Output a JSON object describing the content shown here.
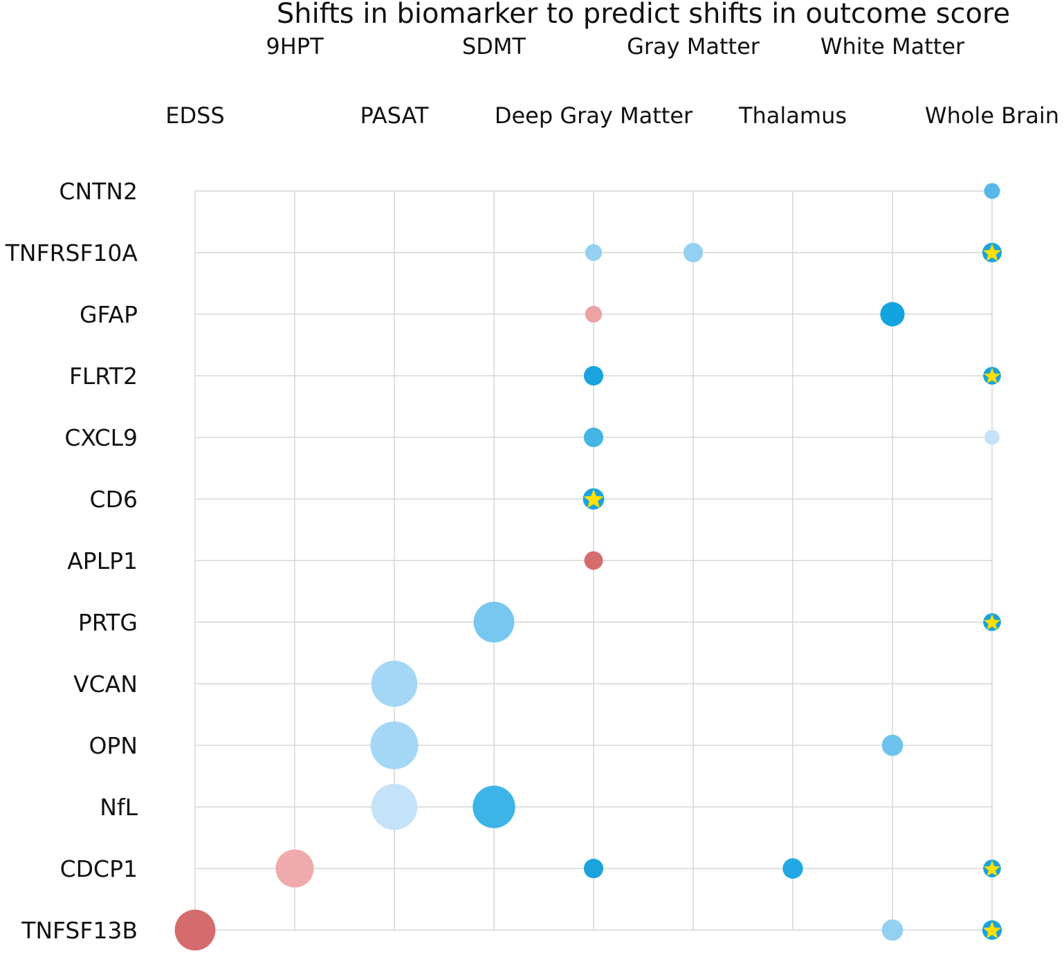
{
  "chart_data": {
    "type": "scatter",
    "title": "Shifts in biomarker to predict shifts in outcome score",
    "xlabel": "",
    "ylabel": "",
    "x_categories": [
      "EDSS",
      "9HPT",
      "PASAT",
      "SDMT",
      "Deep Gray Matter",
      "Gray Matter",
      "Thalamus",
      "White Matter",
      "Whole Brain"
    ],
    "y_categories": [
      "CNTN2",
      "TNFRSF10A",
      "GFAP",
      "FLRT2",
      "CXCL9",
      "CD6",
      "APLP1",
      "PRTG",
      "VCAN",
      "OPN",
      "NfL",
      "CDCP1",
      "TNFSF13B"
    ],
    "grid": true,
    "legend": "none",
    "points": [
      {
        "x": "Whole Brain",
        "y": "CNTN2",
        "size": 0.36,
        "color": "#56b8e8",
        "star": false
      },
      {
        "x": "Deep Gray Matter",
        "y": "TNFRSF10A",
        "size": 0.38,
        "color": "#93d0f2",
        "star": false
      },
      {
        "x": "Gray Matter",
        "y": "TNFRSF10A",
        "size": 0.44,
        "color": "#93d0f2",
        "star": false
      },
      {
        "x": "Whole Brain",
        "y": "TNFRSF10A",
        "size": 0.44,
        "color": "#1aa3dd",
        "star": true
      },
      {
        "x": "Deep Gray Matter",
        "y": "GFAP",
        "size": 0.38,
        "color": "#eba3a4",
        "star": false
      },
      {
        "x": "White Matter",
        "y": "GFAP",
        "size": 0.55,
        "color": "#12a4df",
        "star": false
      },
      {
        "x": "Deep Gray Matter",
        "y": "FLRT2",
        "size": 0.44,
        "color": "#1aa3dd",
        "star": false
      },
      {
        "x": "Whole Brain",
        "y": "FLRT2",
        "size": 0.4,
        "color": "#1aa3dd",
        "star": true
      },
      {
        "x": "Deep Gray Matter",
        "y": "CXCL9",
        "size": 0.44,
        "color": "#44b4e6",
        "star": false
      },
      {
        "x": "Whole Brain",
        "y": "CXCL9",
        "size": 0.34,
        "color": "#c4e2f8",
        "star": false
      },
      {
        "x": "Deep Gray Matter",
        "y": "CD6",
        "size": 0.48,
        "color": "#1aa3dd",
        "star": true
      },
      {
        "x": "Deep Gray Matter",
        "y": "APLP1",
        "size": 0.42,
        "color": "#d46c6d",
        "star": false
      },
      {
        "x": "SDMT",
        "y": "PRTG",
        "size": 0.92,
        "color": "#77c7f0",
        "star": false
      },
      {
        "x": "Whole Brain",
        "y": "PRTG",
        "size": 0.4,
        "color": "#1aa3dd",
        "star": true
      },
      {
        "x": "PASAT",
        "y": "VCAN",
        "size": 1.04,
        "color": "#a4d6f6",
        "star": false
      },
      {
        "x": "PASAT",
        "y": "OPN",
        "size": 1.08,
        "color": "#a4d6f6",
        "star": false
      },
      {
        "x": "White Matter",
        "y": "OPN",
        "size": 0.48,
        "color": "#6ec3ee",
        "star": false
      },
      {
        "x": "PASAT",
        "y": "NfL",
        "size": 1.04,
        "color": "#c4e2f8",
        "star": false
      },
      {
        "x": "SDMT",
        "y": "NfL",
        "size": 0.96,
        "color": "#3db4e8",
        "star": false
      },
      {
        "x": "9HPT",
        "y": "CDCP1",
        "size": 0.86,
        "color": "#efaaab",
        "star": false
      },
      {
        "x": "Deep Gray Matter",
        "y": "CDCP1",
        "size": 0.44,
        "color": "#1aa3dd",
        "star": false
      },
      {
        "x": "Thalamus",
        "y": "CDCP1",
        "size": 0.46,
        "color": "#22a8e2",
        "star": false
      },
      {
        "x": "Whole Brain",
        "y": "CDCP1",
        "size": 0.4,
        "color": "#1aa3dd",
        "star": true
      },
      {
        "x": "EDSS",
        "y": "TNFSF13B",
        "size": 0.92,
        "color": "#d46c6d",
        "star": false
      },
      {
        "x": "White Matter",
        "y": "TNFSF13B",
        "size": 0.48,
        "color": "#93d0f2",
        "star": false
      },
      {
        "x": "Whole Brain",
        "y": "TNFSF13B",
        "size": 0.44,
        "color": "#1aa3dd",
        "star": true
      }
    ],
    "star_color": "#ffe000",
    "grid_color": "#d6d6d6"
  }
}
